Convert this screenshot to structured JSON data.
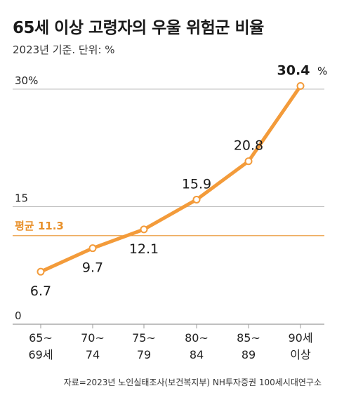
{
  "header": {
    "title": "65세 이상 고령자의 우울 위험군 비율",
    "subtitle": "2023년 기준. 단위: %"
  },
  "source": "자료=2023년 노인실태조사(보건복지부) NH투자증권 100세시대연구소",
  "colors": {
    "line": "#f39b3a",
    "average": "#e8902a",
    "grid": "#bdbdbd",
    "text": "#222222"
  },
  "chart_data": {
    "type": "line",
    "categories": [
      [
        "65~",
        "69세"
      ],
      [
        "70~",
        "74"
      ],
      [
        "75~",
        "79"
      ],
      [
        "80~",
        "84"
      ],
      [
        "85~",
        "89"
      ],
      [
        "90세",
        "이상"
      ]
    ],
    "values": [
      6.7,
      9.7,
      12.1,
      15.9,
      20.8,
      30.4
    ],
    "value_labels": [
      "6.7",
      "9.7",
      "12.1",
      "15.9",
      "20.8",
      "30.4"
    ],
    "last_value_unit": "%",
    "y_ticks": [
      {
        "value": 0,
        "label": "0"
      },
      {
        "value": 15,
        "label": "15"
      },
      {
        "value": 30,
        "label": "30%"
      }
    ],
    "ylim": [
      0,
      30
    ],
    "average": {
      "value": 11.3,
      "label": "평균 11.3"
    },
    "grid": true
  }
}
